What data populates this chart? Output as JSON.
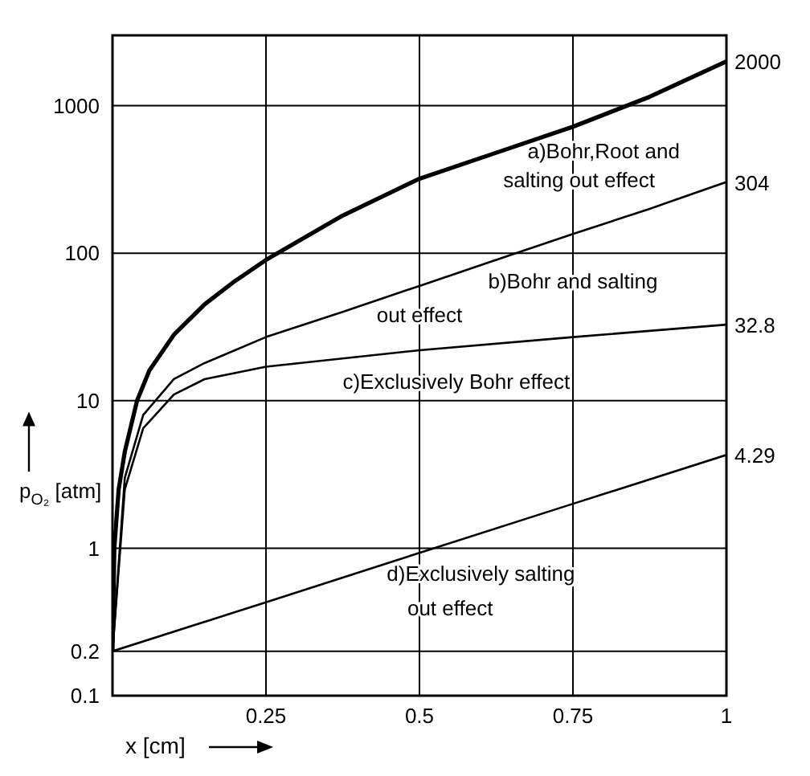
{
  "chart_data": {
    "type": "line",
    "xlabel": "x [cm]",
    "ylabel": "p$_{O₂}$ [atm]",
    "log": "y",
    "grid": true,
    "marker": "none",
    "line_style": "solid",
    "xlim": [
      0,
      1
    ],
    "xticks": [
      0.25,
      0.5,
      0.75,
      1
    ],
    "ylim": [
      0.1,
      3000
    ],
    "yticks": [
      0.1,
      0.2,
      1,
      10,
      100,
      1000
    ],
    "series": [
      {
        "name": "a)Bohr,Root and\nsalting out effect",
        "color": "#000000",
        "x": [
          0,
          0.003,
          0.01,
          0.02,
          0.04,
          0.06,
          0.1,
          0.15,
          0.2,
          0.25,
          0.375,
          0.5,
          0.625,
          0.75,
          0.875,
          1
        ],
        "values": [
          0.2,
          1,
          2.5,
          4.5,
          10,
          16,
          28,
          45,
          65,
          90,
          180,
          320,
          480,
          720,
          1150,
          2000
        ],
        "value_labels": [
          null,
          null,
          null,
          null,
          null,
          null,
          null,
          null,
          null,
          null,
          null,
          null,
          null,
          null,
          null,
          "2000"
        ]
      },
      {
        "name": "b)Bohr and salting\nout effect",
        "color": "#000000",
        "x": [
          0,
          0.02,
          0.05,
          0.1,
          0.15,
          0.25,
          0.375,
          0.5,
          0.625,
          0.75,
          0.875,
          1
        ],
        "values": [
          0.2,
          3,
          8,
          14,
          18,
          27,
          40,
          60,
          90,
          135,
          200,
          304
        ],
        "value_labels": [
          null,
          null,
          null,
          null,
          null,
          null,
          null,
          null,
          null,
          null,
          null,
          "304"
        ]
      },
      {
        "name": "c)Exclusively Bohr effect",
        "color": "#000000",
        "x": [
          0,
          0.02,
          0.05,
          0.1,
          0.15,
          0.25,
          0.5,
          0.75,
          1
        ],
        "values": [
          0.2,
          2.5,
          6.5,
          11,
          14,
          17,
          22,
          27,
          32.8
        ],
        "value_labels": [
          null,
          null,
          null,
          null,
          null,
          null,
          null,
          null,
          "32.8"
        ]
      },
      {
        "name": "d)Exclusively salting\nout effect",
        "color": "#000000",
        "x": [
          0,
          0.25,
          0.5,
          0.75,
          1
        ],
        "values": [
          0.2,
          0.43,
          0.93,
          2,
          4.29
        ],
        "value_labels": [
          null,
          null,
          null,
          null,
          "4.29"
        ]
      }
    ]
  }
}
